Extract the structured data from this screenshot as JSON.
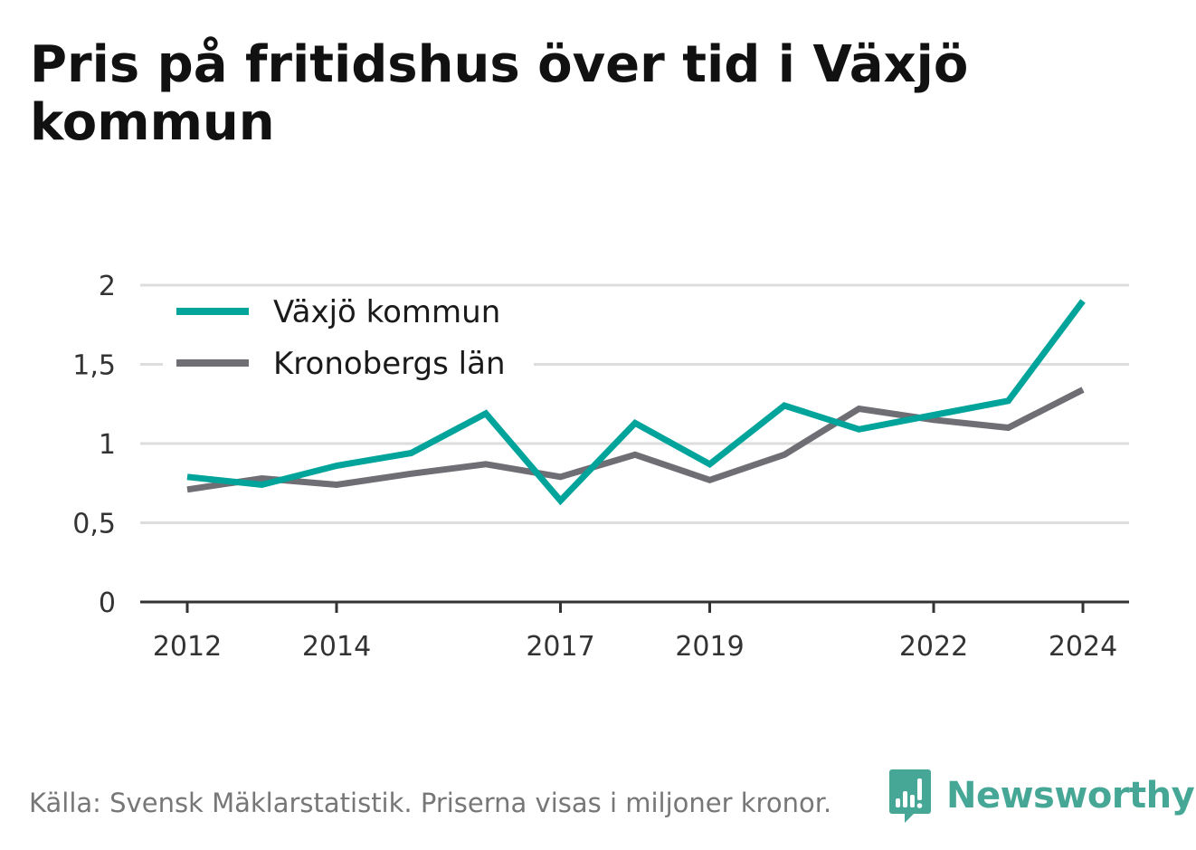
{
  "title": "Pris på fritidshus över tid i Växjö kommun",
  "source": "Källa: Svensk Mäklarstatistik. Priserna visas i miljoner kronor.",
  "brand": {
    "name": "Newsworthy",
    "icon": "bar-chart-speech-icon",
    "color": "#46a796"
  },
  "colors": {
    "vaxjo": "#00a49a",
    "kronoberg": "#6f6e74",
    "grid": "#dddddd",
    "axis": "#333333"
  },
  "chart_data": {
    "type": "line",
    "title": "Pris på fritidshus över tid i Växjö kommun",
    "xlabel": "",
    "ylabel": "",
    "x": [
      2012,
      2013,
      2014,
      2015,
      2016,
      2017,
      2018,
      2019,
      2020,
      2021,
      2022,
      2023,
      2024
    ],
    "x_ticks": [
      2012,
      2014,
      2017,
      2019,
      2022,
      2024
    ],
    "x_tick_labels": [
      "2012",
      "2014",
      "2017",
      "2019",
      "2022",
      "2024"
    ],
    "y_ticks": [
      0,
      0.5,
      1,
      1.5,
      2
    ],
    "y_tick_labels": [
      "0",
      "0,5",
      "1",
      "1,5",
      "2"
    ],
    "ylim": [
      0,
      2
    ],
    "grid": true,
    "legend_position": "top-left",
    "series": [
      {
        "name": "Växjö kommun",
        "color": "#00a49a",
        "values": [
          0.79,
          0.74,
          0.86,
          0.94,
          1.19,
          0.64,
          1.13,
          0.87,
          1.24,
          1.09,
          1.18,
          1.27,
          1.9
        ]
      },
      {
        "name": "Kronobergs län",
        "color": "#6f6e74",
        "values": [
          0.71,
          0.78,
          0.74,
          0.81,
          0.87,
          0.79,
          0.93,
          0.77,
          0.93,
          1.22,
          1.15,
          1.1,
          1.34
        ]
      }
    ]
  }
}
